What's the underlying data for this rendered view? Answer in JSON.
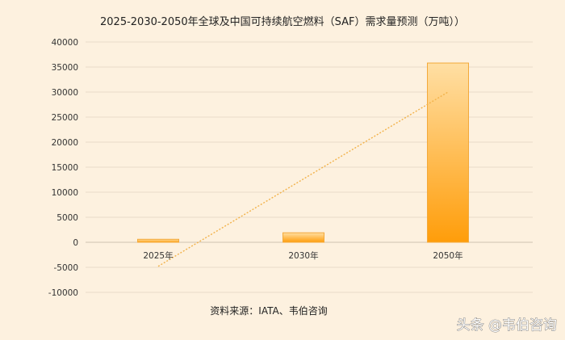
{
  "chart_data": {
    "type": "bar",
    "title": "2025-2030-2050年全球及中国可持续航空燃料（SAF）需求量预测（万吨））",
    "categories": [
      "2025年",
      "2030年",
      "2050年"
    ],
    "values": [
      600,
      1900,
      35800
    ],
    "ylim": [
      -10000,
      40000
    ],
    "y_ticks": [
      40000,
      35000,
      30000,
      25000,
      20000,
      15000,
      10000,
      5000,
      0,
      -5000,
      -10000
    ],
    "grid": true,
    "legend": "none",
    "trendline": {
      "type": "linear",
      "style": "dotted",
      "start": {
        "category": "2025年",
        "y": -4800
      },
      "end": {
        "category": "2050年",
        "y": 30000
      }
    },
    "source_note": "资料来源：IATA、韦伯咨询",
    "colors": {
      "bar_top": "#ffdfa4",
      "bar_bottom": "#ff9d0a",
      "bar_border": "#f3a93a",
      "trendline": "#f2b24a",
      "background": "#fdf1df"
    }
  },
  "watermark": {
    "text": "头条 @韦伯咨询"
  }
}
